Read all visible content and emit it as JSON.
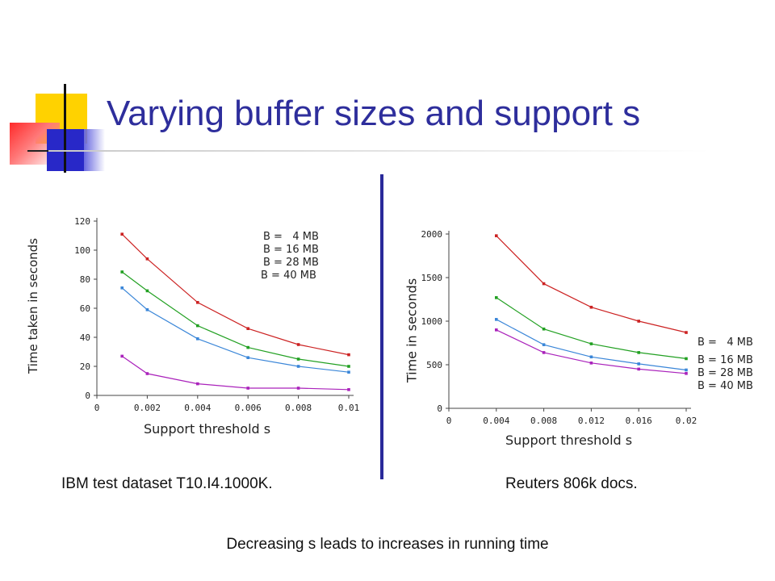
{
  "title": "Varying buffer sizes and support s",
  "footer": "Decreasing s leads to increases in running time",
  "colors": {
    "title": "#2e2e9c",
    "B4": "#cc2222",
    "B16": "#22a022",
    "B28": "#3a86d8",
    "B40": "#aa22bb"
  },
  "chart_data": [
    {
      "type": "line",
      "caption": "IBM test dataset T10.I4.1000K.",
      "xlabel": "Support threshold s",
      "ylabel": "Time taken in seconds",
      "xlim": [
        0,
        0.01
      ],
      "ylim": [
        0,
        120
      ],
      "xticks": [
        "0",
        "0.002",
        "0.004",
        "0.006",
        "0.008",
        "0.01"
      ],
      "yticks": [
        "0",
        "20",
        "40",
        "60",
        "80",
        "100",
        "120"
      ],
      "xtick_values": [
        0,
        0.002,
        0.004,
        0.006,
        0.008,
        0.01
      ],
      "ytick_values": [
        0,
        20,
        40,
        60,
        80,
        100,
        120
      ],
      "legend_position": "top-right",
      "series": [
        {
          "name": "B =   4 MB",
          "color": "#cc2222",
          "x": [
            0.001,
            0.002,
            0.004,
            0.006,
            0.008,
            0.01
          ],
          "y": [
            111,
            94,
            64,
            46,
            35,
            28
          ]
        },
        {
          "name": "B = 16 MB",
          "color": "#22a022",
          "x": [
            0.001,
            0.002,
            0.004,
            0.006,
            0.008,
            0.01
          ],
          "y": [
            85,
            72,
            48,
            33,
            25,
            20
          ]
        },
        {
          "name": "B = 28 MB",
          "color": "#3a86d8",
          "x": [
            0.001,
            0.002,
            0.004,
            0.006,
            0.008,
            0.01
          ],
          "y": [
            74,
            59,
            39,
            26,
            20,
            16
          ]
        },
        {
          "name": "B = 40 MB",
          "color": "#aa22bb",
          "x": [
            0.001,
            0.002,
            0.004,
            0.006,
            0.008,
            0.01
          ],
          "y": [
            27,
            15,
            8,
            5,
            5,
            4
          ]
        }
      ]
    },
    {
      "type": "line",
      "caption": "Reuters 806k docs.",
      "xlabel": "Support threshold s",
      "ylabel": "Time in seconds",
      "xlim": [
        0,
        0.02
      ],
      "ylim": [
        0,
        2000
      ],
      "xticks": [
        "0",
        "0.004",
        "0.008",
        "0.012",
        "0.016",
        "0.02"
      ],
      "yticks": [
        "0",
        "500",
        "1000",
        "1500",
        "2000"
      ],
      "xtick_values": [
        0,
        0.004,
        0.008,
        0.012,
        0.016,
        0.02
      ],
      "ytick_values": [
        0,
        500,
        1000,
        1500,
        2000
      ],
      "legend_position": "right",
      "series": [
        {
          "name": "B =   4 MB",
          "color": "#cc2222",
          "x": [
            0.004,
            0.008,
            0.012,
            0.016,
            0.02
          ],
          "y": [
            1980,
            1430,
            1160,
            1000,
            870
          ]
        },
        {
          "name": "B = 16 MB",
          "color": "#22a022",
          "x": [
            0.004,
            0.008,
            0.012,
            0.016,
            0.02
          ],
          "y": [
            1270,
            910,
            740,
            640,
            570
          ]
        },
        {
          "name": "B = 28 MB",
          "color": "#3a86d8",
          "x": [
            0.004,
            0.008,
            0.012,
            0.016,
            0.02
          ],
          "y": [
            1020,
            730,
            590,
            510,
            440
          ]
        },
        {
          "name": "B = 40 MB",
          "color": "#aa22bb",
          "x": [
            0.004,
            0.008,
            0.012,
            0.016,
            0.02
          ],
          "y": [
            900,
            640,
            520,
            450,
            400
          ]
        }
      ]
    }
  ]
}
